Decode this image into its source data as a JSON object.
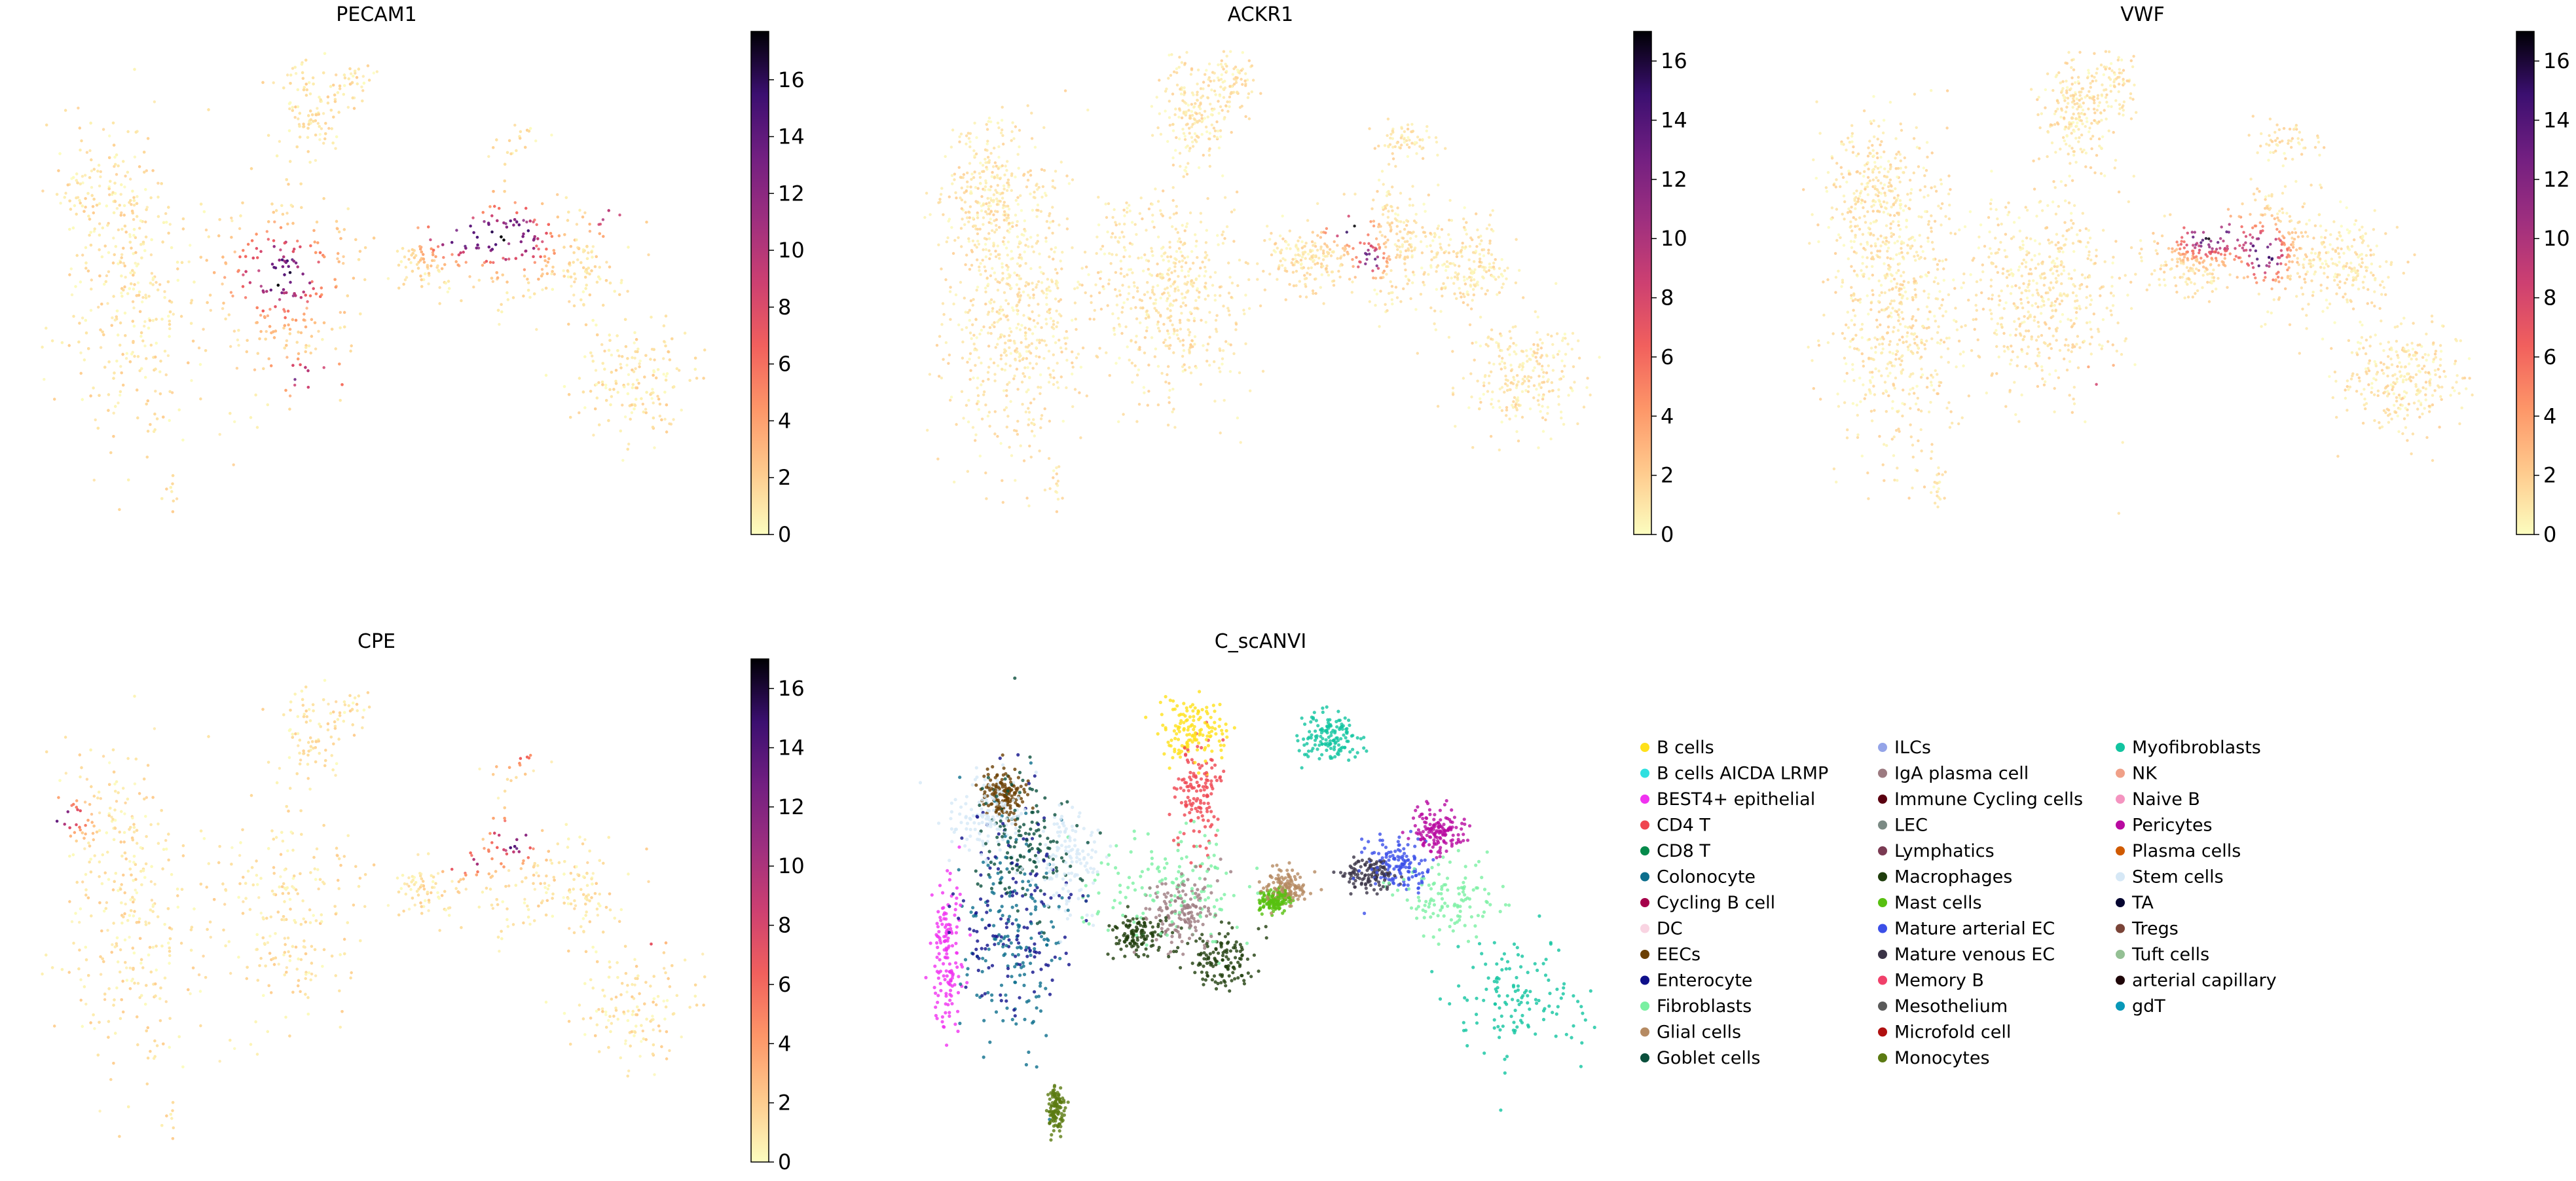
{
  "chart_data": [
    {
      "type": "scatter",
      "panel": "umap-expression",
      "title": "PECAM1",
      "colorbar": {
        "colormap": "magma_r",
        "range": [
          0,
          17.7
        ],
        "ticks": [
          0,
          2,
          4,
          6,
          8,
          10,
          12,
          14,
          16
        ]
      },
      "high_expression_regions": [
        "center-left cluster",
        "right-center clusters",
        "bottom-center arc"
      ]
    },
    {
      "type": "scatter",
      "panel": "umap-expression",
      "title": "ACKR1",
      "colorbar": {
        "colormap": "magma_r",
        "range": [
          0,
          17
        ],
        "ticks": [
          0,
          2,
          4,
          6,
          8,
          10,
          12,
          14,
          16
        ]
      },
      "high_expression_regions": [
        "right-center clusters"
      ]
    },
    {
      "type": "scatter",
      "panel": "umap-expression",
      "title": "VWF",
      "colorbar": {
        "colormap": "magma_r",
        "range": [
          0,
          17
        ],
        "ticks": [
          0,
          2,
          4,
          6,
          8,
          10,
          12,
          14,
          16
        ]
      },
      "high_expression_regions": [
        "right-center clusters",
        "bottom-center arc"
      ]
    },
    {
      "type": "scatter",
      "panel": "umap-expression",
      "title": "CPE",
      "colorbar": {
        "colormap": "magma_r",
        "range": [
          0,
          17
        ],
        "ticks": [
          0,
          2,
          4,
          6,
          8,
          10,
          12,
          14,
          16
        ]
      },
      "high_expression_regions": [
        "top-right island",
        "right-center clusters",
        "far-left tip"
      ]
    },
    {
      "type": "scatter",
      "panel": "umap-categorical",
      "title": "C_scANVI",
      "legend_location": "right",
      "legend_columns": 3,
      "categories": [
        {
          "name": "B cells",
          "color": "#ffe11a"
        },
        {
          "name": "B cells AICDA LRMP",
          "color": "#2fe0e0"
        },
        {
          "name": "BEST4+ epithelial",
          "color": "#f032f0"
        },
        {
          "name": "CD4 T",
          "color": "#ef4550"
        },
        {
          "name": "CD8 T",
          "color": "#058a4b"
        },
        {
          "name": "Colonocyte",
          "color": "#0c6e8c"
        },
        {
          "name": "Cycling B cell",
          "color": "#a5004a"
        },
        {
          "name": "DC",
          "color": "#f9d4e2"
        },
        {
          "name": "EECs",
          "color": "#6b4004"
        },
        {
          "name": "Enterocyte",
          "color": "#0e0f8a"
        },
        {
          "name": "Fibroblasts",
          "color": "#7af0a2"
        },
        {
          "name": "Glial cells",
          "color": "#b58a62"
        },
        {
          "name": "Goblet cells",
          "color": "#0a4f3c"
        },
        {
          "name": "ILCs",
          "color": "#94a4e8"
        },
        {
          "name": "IgA plasma cell",
          "color": "#9c7a80"
        },
        {
          "name": "Immune Cycling cells",
          "color": "#5a0010"
        },
        {
          "name": "LEC",
          "color": "#7b8a84"
        },
        {
          "name": "Lymphatics",
          "color": "#7a3a52"
        },
        {
          "name": "Macrophages",
          "color": "#1f3d0c"
        },
        {
          "name": "Mast cells",
          "color": "#58c010"
        },
        {
          "name": "Mature arterial EC",
          "color": "#3b4fe8"
        },
        {
          "name": "Mature venous EC",
          "color": "#3a3346"
        },
        {
          "name": "Memory B",
          "color": "#f0406a"
        },
        {
          "name": "Mesothelium",
          "color": "#5a5a5a"
        },
        {
          "name": "Microfold cell",
          "color": "#b01010"
        },
        {
          "name": "Monocytes",
          "color": "#5b7a12"
        },
        {
          "name": "Myofibroblasts",
          "color": "#12c4a0"
        },
        {
          "name": "NK",
          "color": "#f0a088"
        },
        {
          "name": "Naive B",
          "color": "#f494c0"
        },
        {
          "name": "Pericytes",
          "color": "#b80aa0"
        },
        {
          "name": "Plasma cells",
          "color": "#d05a00"
        },
        {
          "name": "Stem cells",
          "color": "#d6e8f6"
        },
        {
          "name": "TA",
          "color": "#050530"
        },
        {
          "name": "Tregs",
          "color": "#7a4438"
        },
        {
          "name": "Tuft cells",
          "color": "#94c094"
        },
        {
          "name": "arterial capillary",
          "color": "#1e0508"
        },
        {
          "name": "gdT",
          "color": "#0898b8"
        }
      ]
    }
  ],
  "colors": {
    "low_expression": "#fcfdbf",
    "high_expression": "#000004",
    "background_cells": "#d8d8d8"
  }
}
